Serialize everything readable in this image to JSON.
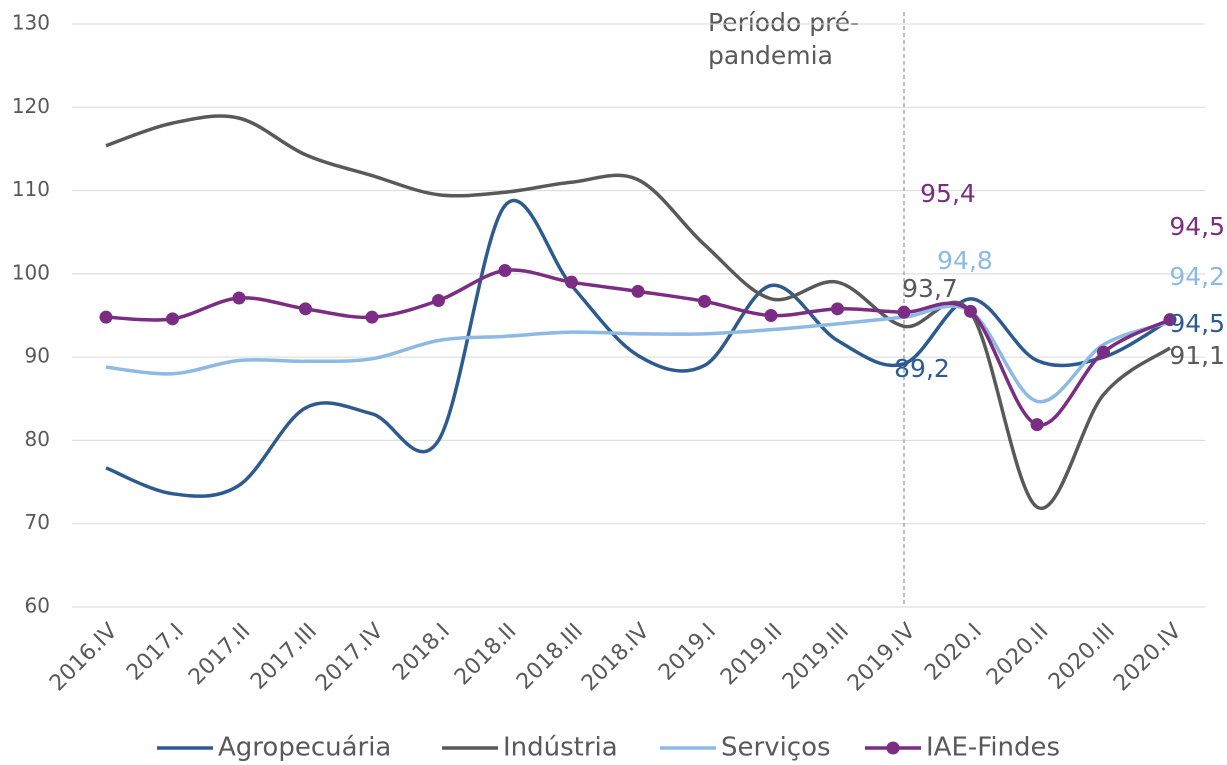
{
  "chart_data": {
    "type": "line",
    "categories": [
      "2016.IV",
      "2017.I",
      "2017.II",
      "2017.III",
      "2017.IV",
      "2018.I",
      "2018.II",
      "2018.III",
      "2018.IV",
      "2019.I",
      "2019.II",
      "2019.III",
      "2019.IV",
      "2020.I",
      "2020.II",
      "2020.III",
      "2020.IV"
    ],
    "series": [
      {
        "name": "Agropecuária",
        "color": "#2e5b8f",
        "markers": false,
        "values": [
          76.7,
          73.6,
          74.6,
          83.9,
          83.2,
          80.0,
          108.2,
          98.6,
          90.2,
          89.0,
          98.6,
          92.0,
          89.2,
          97.0,
          89.6,
          90.0,
          94.5
        ],
        "value_labels": [
          null,
          null,
          null,
          null,
          null,
          null,
          null,
          null,
          null,
          null,
          null,
          null,
          "89,2",
          null,
          null,
          null,
          "94,5"
        ]
      },
      {
        "name": "Indústria",
        "color": "#595959",
        "markers": false,
        "values": [
          115.4,
          118.1,
          118.7,
          114.3,
          111.8,
          109.5,
          109.8,
          111.0,
          111.3,
          103.5,
          97.0,
          99.0,
          93.7,
          95.4,
          72.0,
          85.5,
          91.1
        ],
        "value_labels": [
          null,
          null,
          null,
          null,
          null,
          null,
          null,
          null,
          null,
          null,
          null,
          null,
          "93,7",
          null,
          null,
          null,
          "91,1"
        ]
      },
      {
        "name": "Serviços",
        "color": "#8dbae2",
        "markers": false,
        "values": [
          88.8,
          88.0,
          89.6,
          89.5,
          89.8,
          92.0,
          92.5,
          93.0,
          92.8,
          92.8,
          93.3,
          94.0,
          94.8,
          95.5,
          84.7,
          91.5,
          94.2
        ],
        "value_labels": [
          null,
          null,
          null,
          null,
          null,
          null,
          null,
          null,
          null,
          null,
          null,
          null,
          "94,8",
          null,
          null,
          null,
          "94,2"
        ]
      },
      {
        "name": "IAE-Findes",
        "color": "#7b2c83",
        "markers": true,
        "values": [
          94.8,
          94.6,
          97.1,
          95.8,
          94.8,
          96.8,
          100.4,
          99.0,
          97.9,
          96.7,
          95.0,
          95.8,
          95.4,
          95.5,
          81.9,
          90.6,
          94.5
        ],
        "value_labels": [
          null,
          null,
          null,
          null,
          null,
          null,
          null,
          null,
          null,
          null,
          null,
          null,
          "95,4",
          null,
          null,
          null,
          "94,5"
        ]
      }
    ],
    "ylim": [
      60,
      130
    ],
    "yticks": [
      60,
      70,
      80,
      90,
      100,
      110,
      120,
      130
    ],
    "grid": true,
    "annotation": {
      "text": [
        "Período pré-",
        "pandemia"
      ],
      "category": "2019.IV"
    },
    "legend": "bottom"
  }
}
